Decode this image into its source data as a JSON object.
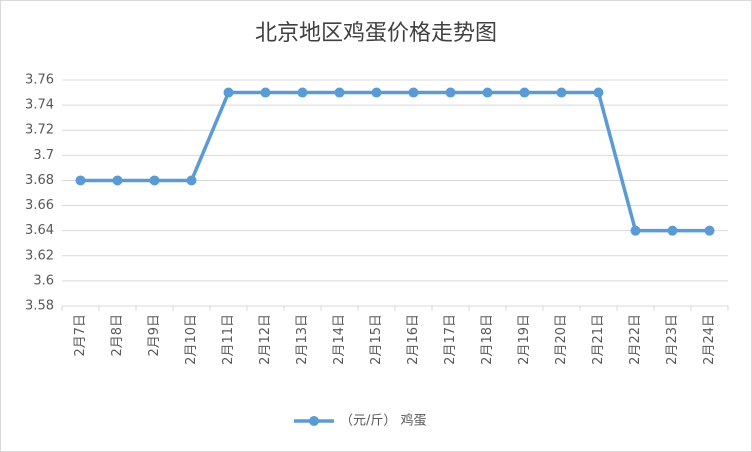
{
  "chart_data": {
    "type": "line",
    "title": "北京地区鸡蛋价格走势图",
    "categories": [
      "2月7日",
      "2月8日",
      "2月9日",
      "2月10日",
      "2月11日",
      "2月12日",
      "2月13日",
      "2月14日",
      "2月15日",
      "2月16日",
      "2月17日",
      "2月18日",
      "2月19日",
      "2月20日",
      "2月21日",
      "2月22日",
      "2月23日",
      "2月24日"
    ],
    "series": [
      {
        "name": "（元/斤） 鸡蛋",
        "color": "#5b9bd5",
        "values": [
          3.68,
          3.68,
          3.68,
          3.68,
          3.75,
          3.75,
          3.75,
          3.75,
          3.75,
          3.75,
          3.75,
          3.75,
          3.75,
          3.75,
          3.75,
          3.64,
          3.64,
          3.64
        ]
      }
    ],
    "ylim": [
      3.58,
      3.76
    ],
    "yticks": [
      3.58,
      3.6,
      3.62,
      3.64,
      3.66,
      3.68,
      3.7,
      3.72,
      3.74,
      3.76
    ],
    "grid": true,
    "legend": "bottom"
  }
}
